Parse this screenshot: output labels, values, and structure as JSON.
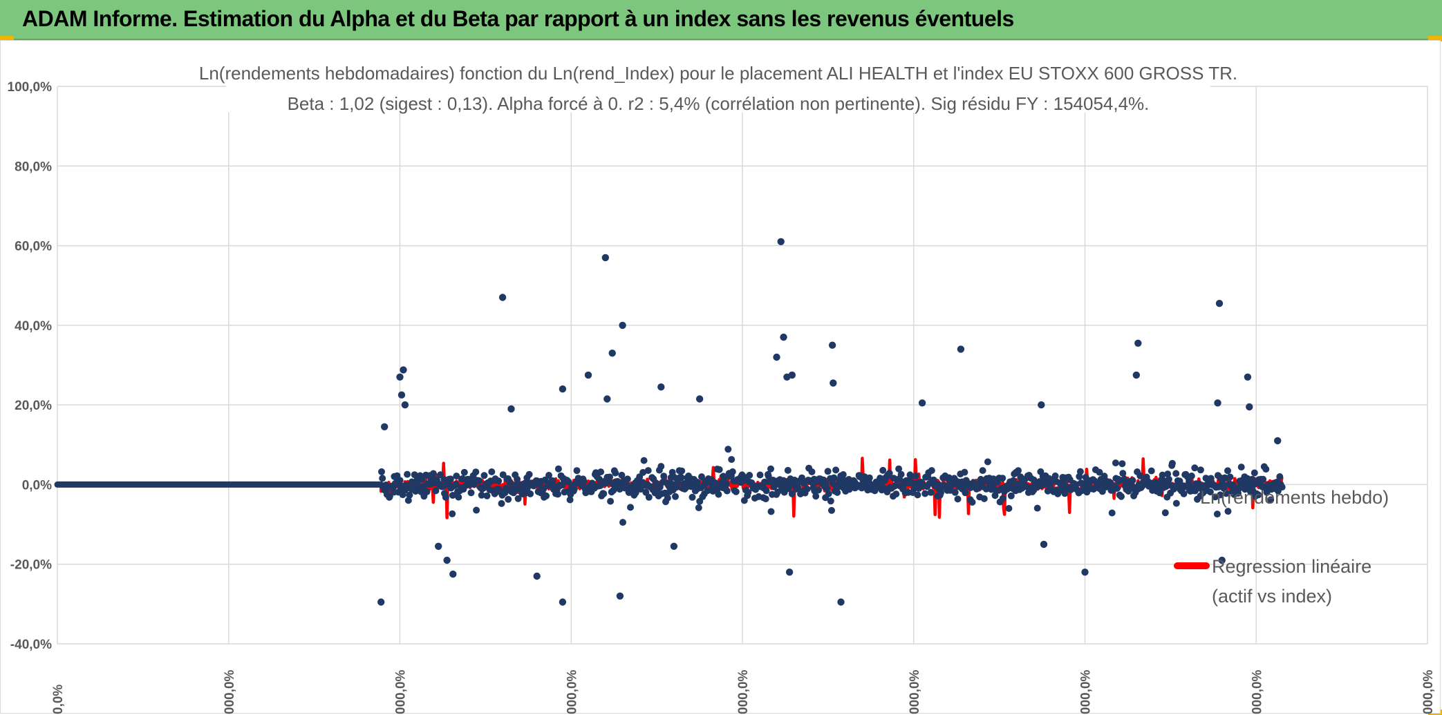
{
  "banner": {
    "title": "ADAM Informe. Estimation du Alpha et du Beta par rapport à un index sans les revenus éventuels"
  },
  "colors": {
    "banner": "#7dc67e",
    "points": "#203864",
    "regression": "#ff0000",
    "axis_text": "#595959",
    "grid": "#d9d9d9"
  },
  "chart_data": {
    "type": "scatter",
    "title_lines": [
      "Ln(rendements hebdomadaires) fonction du Ln(rend_Index) pour le placement ALI HEALTH et l'index EU STOXX 600 GROSS TR.",
      "Beta : 1,02 (sigest : 0,13). Alpha forcé à 0. r2 : 5,4% (corrélation non pertinente). Sig résidu FY : 154054,4%."
    ],
    "y_ticks": [
      "100,0%",
      "80,0%",
      "60,0%",
      "40,0%",
      "20,0%",
      "0,0%",
      "-20,0%",
      "-40,0%"
    ],
    "y_values": [
      100,
      80,
      60,
      40,
      20,
      0,
      -20,
      -40
    ],
    "ylim": [
      -40,
      100
    ],
    "x_ticks": [
      "0,0%",
      "000,0%",
      "000,0%",
      "000,0%",
      "000,0%",
      "000,0%",
      "000,0%",
      "000,0%",
      "000,0%"
    ],
    "x_range_index": [
      0,
      1600
    ],
    "flat_until": 378,
    "data_end": 1430,
    "notable_points": [
      {
        "x": 378,
        "y": -29.5
      },
      {
        "x": 382,
        "y": 14.5
      },
      {
        "x": 400,
        "y": 27
      },
      {
        "x": 404,
        "y": 28.8
      },
      {
        "x": 402,
        "y": 22.5
      },
      {
        "x": 406,
        "y": 20
      },
      {
        "x": 445,
        "y": -15.5
      },
      {
        "x": 455,
        "y": -19
      },
      {
        "x": 462,
        "y": -22.5
      },
      {
        "x": 520,
        "y": 47
      },
      {
        "x": 530,
        "y": 19
      },
      {
        "x": 560,
        "y": -23
      },
      {
        "x": 590,
        "y": -29.5
      },
      {
        "x": 590,
        "y": 24
      },
      {
        "x": 620,
        "y": 27.5
      },
      {
        "x": 640,
        "y": 57
      },
      {
        "x": 642,
        "y": 21.5
      },
      {
        "x": 648,
        "y": 33
      },
      {
        "x": 660,
        "y": 40
      },
      {
        "x": 657,
        "y": -28
      },
      {
        "x": 705,
        "y": 24.5
      },
      {
        "x": 720,
        "y": -15.5
      },
      {
        "x": 750,
        "y": 21.5
      },
      {
        "x": 840,
        "y": 32
      },
      {
        "x": 845,
        "y": 61
      },
      {
        "x": 848,
        "y": 37
      },
      {
        "x": 852,
        "y": 27
      },
      {
        "x": 858,
        "y": 27.5
      },
      {
        "x": 855,
        "y": -22
      },
      {
        "x": 905,
        "y": 35
      },
      {
        "x": 906,
        "y": 25.5
      },
      {
        "x": 915,
        "y": -29.5
      },
      {
        "x": 1010,
        "y": 20.5
      },
      {
        "x": 1055,
        "y": 34
      },
      {
        "x": 1149,
        "y": 20
      },
      {
        "x": 1152,
        "y": -15
      },
      {
        "x": 1200,
        "y": -22
      },
      {
        "x": 1260,
        "y": 27.5
      },
      {
        "x": 1262,
        "y": 35.5
      },
      {
        "x": 1355,
        "y": 20.5
      },
      {
        "x": 1357,
        "y": 45.5
      },
      {
        "x": 1390,
        "y": 27
      },
      {
        "x": 1392,
        "y": 19.5
      },
      {
        "x": 1360,
        "y": -19
      },
      {
        "x": 1425,
        "y": 11
      }
    ],
    "series": [
      {
        "name": "Ln(rendements hebdo)",
        "color": "#203864",
        "kind": "points"
      },
      {
        "name": "Regression linéaire (actif vs index)",
        "color": "#ff0000",
        "kind": "line"
      }
    ],
    "legend": {
      "series1_label": "Ln(rendements hebdo)",
      "series2_label_line1": "Regression linéaire",
      "series2_label_line2": "(actif vs index)",
      "position": "right"
    }
  }
}
